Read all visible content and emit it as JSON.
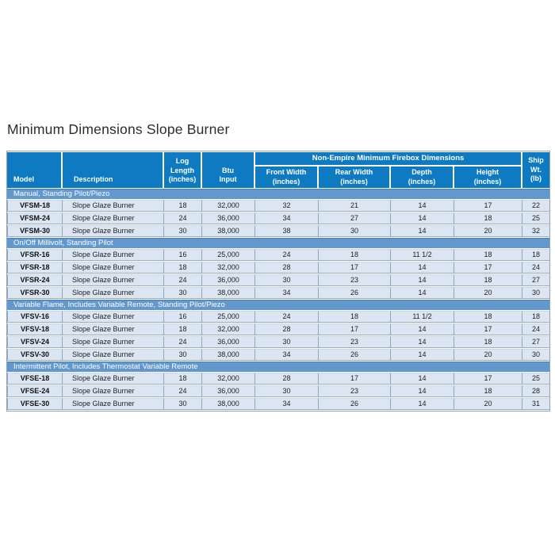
{
  "page": {
    "title": "Minimum Dimensions Slope Burner"
  },
  "colors": {
    "header_bg": "#0d7ac2",
    "section_bg": "#6298ce",
    "row_bg": "#dce6f2",
    "header_text": "#ffffff",
    "title_text": "#2e2b2c"
  },
  "table": {
    "group_header": "Non-Empire Minimum Firebox Dimensions",
    "columns": [
      {
        "name": "model",
        "lines": [
          "Model"
        ],
        "group": false
      },
      {
        "name": "description",
        "lines": [
          "Description"
        ],
        "group": false
      },
      {
        "name": "log-length",
        "lines": [
          "Log",
          "Length",
          "(inches)"
        ],
        "group": false
      },
      {
        "name": "btu-input",
        "lines": [
          "Btu",
          "Input"
        ],
        "group": false
      },
      {
        "name": "front-width",
        "lines": [
          "Front Width",
          "(inches)"
        ],
        "group": true
      },
      {
        "name": "rear-width",
        "lines": [
          "Rear Width",
          "(inches)"
        ],
        "group": true
      },
      {
        "name": "depth",
        "lines": [
          "Depth",
          "(inches)"
        ],
        "group": true
      },
      {
        "name": "height",
        "lines": [
          "Height",
          "(inches)"
        ],
        "group": true
      },
      {
        "name": "ship-wt",
        "lines": [
          "Ship",
          "Wt.",
          "(lb)"
        ],
        "group": false
      }
    ],
    "sections": [
      {
        "label": "Manual, Standing Pilot/Piezo",
        "rows": [
          [
            "VFSM-18",
            "Slope Glaze Burner",
            "18",
            "32,000",
            "32",
            "21",
            "14",
            "17",
            "22"
          ],
          [
            "VFSM-24",
            "Slope Glaze Burner",
            "24",
            "36,000",
            "34",
            "27",
            "14",
            "18",
            "25"
          ],
          [
            "VFSM-30",
            "Slope Glaze Burner",
            "30",
            "38,000",
            "38",
            "30",
            "14",
            "20",
            "32"
          ]
        ]
      },
      {
        "label": "On/Off Millivolt, Standing Pilot",
        "rows": [
          [
            "VFSR-16",
            "Slope Glaze Burner",
            "16",
            "25,000",
            "24",
            "18",
            "11 1/2",
            "18",
            "18"
          ],
          [
            "VFSR-18",
            "Slope Glaze Burner",
            "18",
            "32,000",
            "28",
            "17",
            "14",
            "17",
            "24"
          ],
          [
            "VFSR-24",
            "Slope Glaze Burner",
            "24",
            "36,000",
            "30",
            "23",
            "14",
            "18",
            "27"
          ],
          [
            "VFSR-30",
            "Slope Glaze Burner",
            "30",
            "38,000",
            "34",
            "26",
            "14",
            "20",
            "30"
          ]
        ]
      },
      {
        "label": "Variable Flame, Includes Variable Remote, Standing Pilot/Piezo",
        "rows": [
          [
            "VFSV-16",
            "Slope Glaze Burner",
            "16",
            "25,000",
            "24",
            "18",
            "11 1/2",
            "18",
            "18"
          ],
          [
            "VFSV-18",
            "Slope Glaze Burner",
            "18",
            "32,000",
            "28",
            "17",
            "14",
            "17",
            "24"
          ],
          [
            "VFSV-24",
            "Slope Glaze Burner",
            "24",
            "36,000",
            "30",
            "23",
            "14",
            "18",
            "27"
          ],
          [
            "VFSV-30",
            "Slope Glaze Burner",
            "30",
            "38,000",
            "34",
            "26",
            "14",
            "20",
            "30"
          ]
        ]
      },
      {
        "label": "Intermittent Pilot, Includes Thermostat Variable Remote",
        "rows": [
          [
            "VFSE-18",
            "Slope Glaze Burner",
            "18",
            "32,000",
            "28",
            "17",
            "14",
            "17",
            "25"
          ],
          [
            "VFSE-24",
            "Slope Glaze Burner",
            "24",
            "36,000",
            "30",
            "23",
            "14",
            "18",
            "28"
          ],
          [
            "VFSE-30",
            "Slope Glaze Burner",
            "30",
            "38,000",
            "34",
            "26",
            "14",
            "20",
            "31"
          ]
        ]
      }
    ]
  }
}
